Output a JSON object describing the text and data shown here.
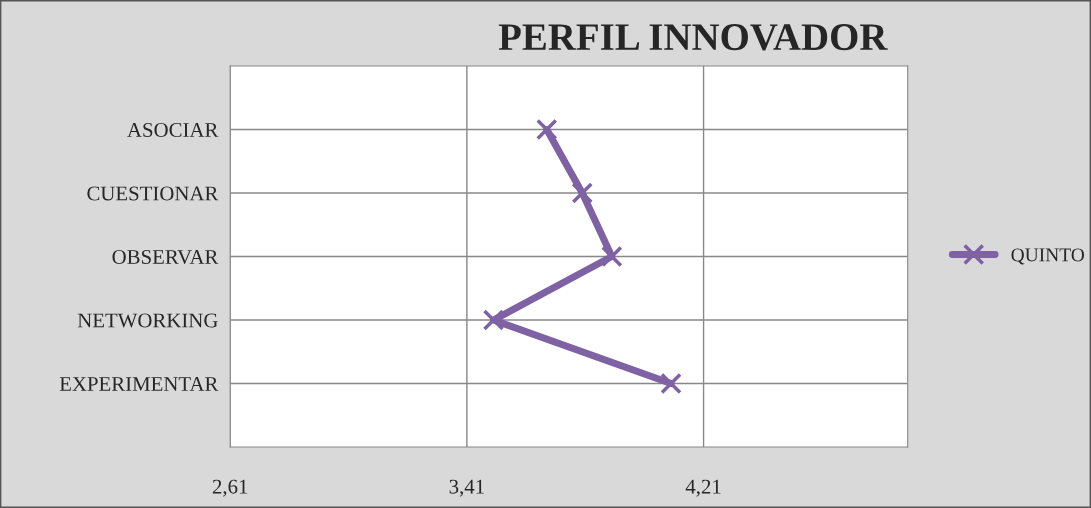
{
  "chart_data": {
    "type": "line",
    "title": "PERFIL INNOVADOR",
    "orientation": "horizontal",
    "categories": [
      "ASOCIAR",
      "CUESTIONAR",
      "OBSERVAR",
      "NETWORKING",
      "EXPERIMENTAR"
    ],
    "series": [
      {
        "name": "QUINTO",
        "color": "#7f62a4",
        "values": [
          3.68,
          3.8,
          3.9,
          3.5,
          4.1
        ]
      }
    ],
    "xlim": [
      2.61,
      4.9
    ],
    "xticks": [
      {
        "value": 2.61,
        "label": "2,61"
      },
      {
        "value": 3.41,
        "label": "3,41"
      },
      {
        "value": 4.21,
        "label": "4,21"
      }
    ],
    "grid": true,
    "legend": "right",
    "marker": "cross",
    "line_style": "solid"
  }
}
